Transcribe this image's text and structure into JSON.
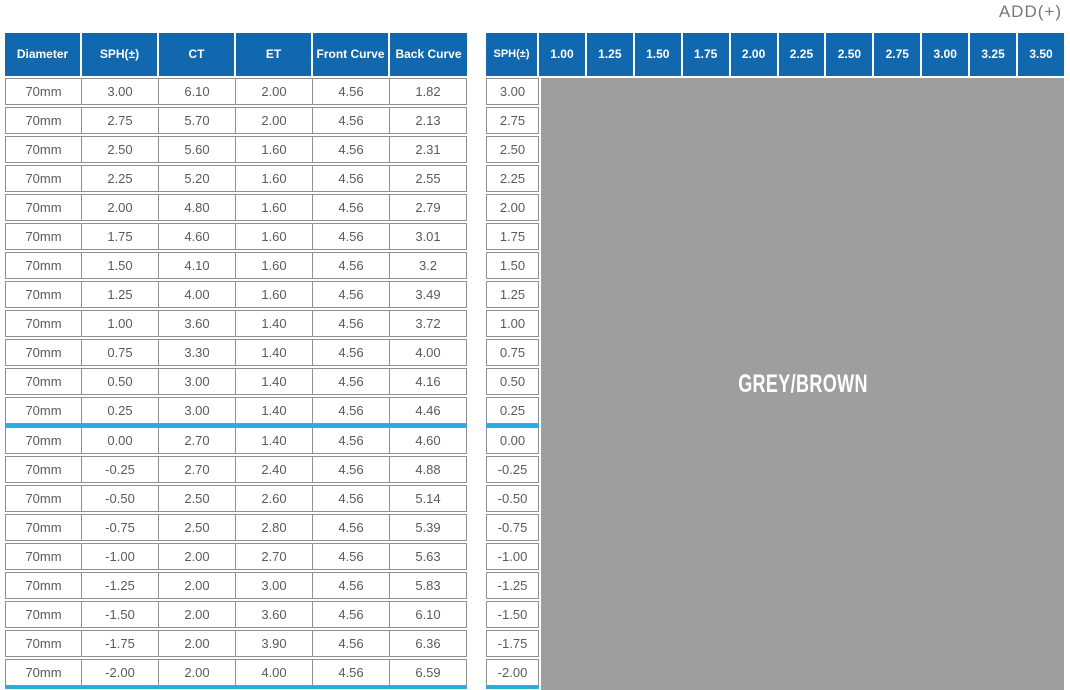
{
  "page": {
    "add_corner_label": "ADD(+)"
  },
  "colors": {
    "header_blue": "#1168af",
    "grey_region": "#9e9e9e",
    "accent_cyan": "#29abe2",
    "border_grey": "#8d9093",
    "text_grey": "#595a5c",
    "label_grey": "#77787b"
  },
  "left_table": {
    "columns": [
      "Diameter",
      "SPH(±)",
      "CT",
      "ET",
      "Front Curve",
      "Back Curve"
    ],
    "rows": [
      [
        "70mm",
        "3.00",
        "6.10",
        "2.00",
        "4.56",
        "1.82"
      ],
      [
        "70mm",
        "2.75",
        "5.70",
        "2.00",
        "4.56",
        "2.13"
      ],
      [
        "70mm",
        "2.50",
        "5.60",
        "1.60",
        "4.56",
        "2.31"
      ],
      [
        "70mm",
        "2.25",
        "5.20",
        "1.60",
        "4.56",
        "2.55"
      ],
      [
        "70mm",
        "2.00",
        "4.80",
        "1.60",
        "4.56",
        "2.79"
      ],
      [
        "70mm",
        "1.75",
        "4.60",
        "1.60",
        "4.56",
        "3.01"
      ],
      [
        "70mm",
        "1.50",
        "4.10",
        "1.60",
        "4.56",
        "3.2"
      ],
      [
        "70mm",
        "1.25",
        "4.00",
        "1.60",
        "4.56",
        "3.49"
      ],
      [
        "70mm",
        "1.00",
        "3.60",
        "1.40",
        "4.56",
        "3.72"
      ],
      [
        "70mm",
        "0.75",
        "3.30",
        "1.40",
        "4.56",
        "4.00"
      ],
      [
        "70mm",
        "0.50",
        "3.00",
        "1.40",
        "4.56",
        "4.16"
      ],
      [
        "70mm",
        "0.25",
        "3.00",
        "1.40",
        "4.56",
        "4.46"
      ],
      [
        "70mm",
        "0.00",
        "2.70",
        "1.40",
        "4.56",
        "4.60"
      ],
      [
        "70mm",
        "-0.25",
        "2.70",
        "2.40",
        "4.56",
        "4.88"
      ],
      [
        "70mm",
        "-0.50",
        "2.50",
        "2.60",
        "4.56",
        "5.14"
      ],
      [
        "70mm",
        "-0.75",
        "2.50",
        "2.80",
        "4.56",
        "5.39"
      ],
      [
        "70mm",
        "-1.00",
        "2.00",
        "2.70",
        "4.56",
        "5.63"
      ],
      [
        "70mm",
        "-1.25",
        "2.00",
        "3.00",
        "4.56",
        "5.83"
      ],
      [
        "70mm",
        "-1.50",
        "2.00",
        "3.60",
        "4.56",
        "6.10"
      ],
      [
        "70mm",
        "-1.75",
        "2.00",
        "3.90",
        "4.56",
        "6.36"
      ],
      [
        "70mm",
        "-2.00",
        "2.00",
        "4.00",
        "4.56",
        "6.59"
      ]
    ]
  },
  "right_table": {
    "sph_header": "SPH(±)",
    "add_columns": [
      "1.00",
      "1.25",
      "1.50",
      "1.75",
      "2.00",
      "2.25",
      "2.50",
      "2.75",
      "3.00",
      "3.25",
      "3.50"
    ],
    "sph_values": [
      "3.00",
      "2.75",
      "2.50",
      "2.25",
      "2.00",
      "1.75",
      "1.50",
      "1.25",
      "1.00",
      "0.75",
      "0.50",
      "0.25",
      "0.00",
      "-0.25",
      "-0.50",
      "-0.75",
      "-1.00",
      "-1.25",
      "-1.50",
      "-1.75",
      "-2.00"
    ],
    "region_label": "GREY/BROWN"
  },
  "dividers": {
    "cyan_after_sph_values": [
      "0.25",
      "-2.00"
    ]
  }
}
